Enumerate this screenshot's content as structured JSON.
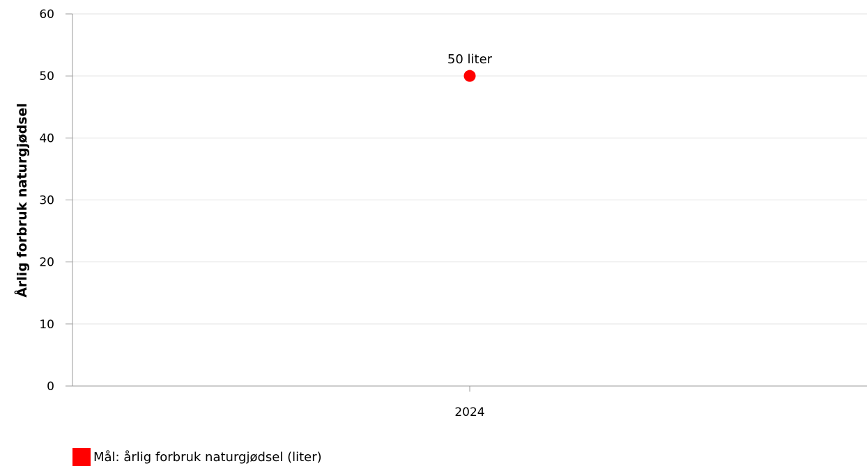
{
  "chart_data": {
    "type": "scatter",
    "title": "",
    "xlabel": "",
    "ylabel": "Årlig forbruk naturgjødsel",
    "ylim": [
      0,
      60
    ],
    "yticks": [
      0,
      10,
      20,
      30,
      40,
      50,
      60
    ],
    "categories": [
      "2024"
    ],
    "series": [
      {
        "name": "Mål: årlig forbruk naturgjødsel (liter)",
        "color": "#ff0000",
        "values": [
          50
        ],
        "labels": [
          "50 liter"
        ]
      }
    ],
    "grid": true,
    "legend_position": "bottom-left"
  }
}
